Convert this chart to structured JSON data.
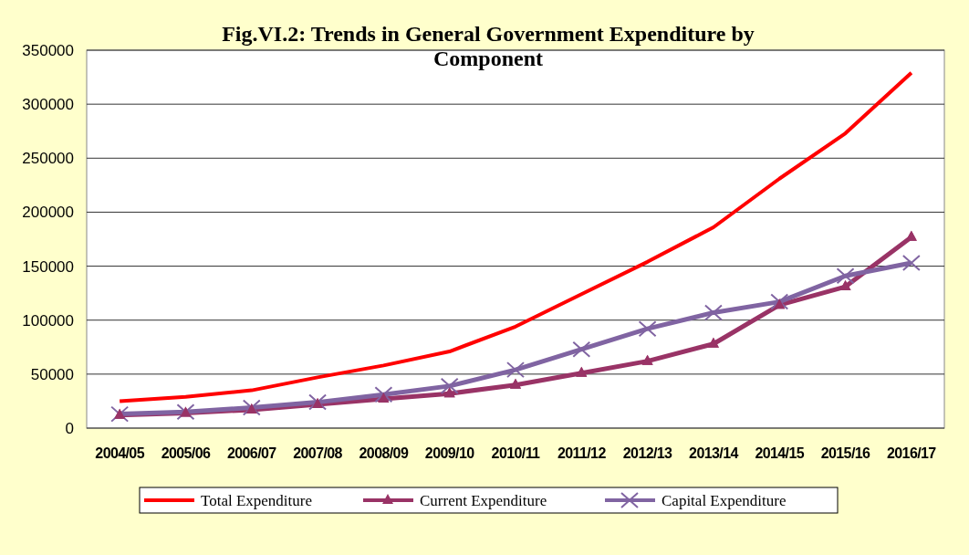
{
  "chart_data": {
    "type": "line",
    "title": "Fig.VI.2: Trends  in General Government Expenditure by Component",
    "categories": [
      "2004/05",
      "2005/06",
      "2006/07",
      "2007/08",
      "2008/09",
      "2009/10",
      "2010/11",
      "2011/12",
      "2012/13",
      "2013/14",
      "2014/15",
      "2015/16",
      "2016/17"
    ],
    "series": [
      {
        "name": "Total Expenditure",
        "color": "#ff0000",
        "marker": "none",
        "values": [
          25000,
          29000,
          35000,
          47000,
          58000,
          71000,
          94000,
          124000,
          154000,
          186000,
          231000,
          273000,
          329000
        ]
      },
      {
        "name": "Current Expenditure",
        "color": "#993366",
        "marker": "triangle",
        "values": [
          12000,
          14000,
          17000,
          22000,
          27000,
          32000,
          40000,
          51000,
          62000,
          78000,
          114000,
          131000,
          177000
        ]
      },
      {
        "name": "Capital Expenditure",
        "color": "#8064a2",
        "marker": "cross",
        "values": [
          13000,
          15000,
          19000,
          24000,
          31000,
          39000,
          54000,
          73000,
          92000,
          107000,
          117000,
          141000,
          153000
        ]
      }
    ],
    "ylim": [
      0,
      350000
    ],
    "yticks": [
      0,
      50000,
      100000,
      150000,
      200000,
      250000,
      300000,
      350000
    ],
    "grid": "y",
    "legend": "bottom"
  }
}
